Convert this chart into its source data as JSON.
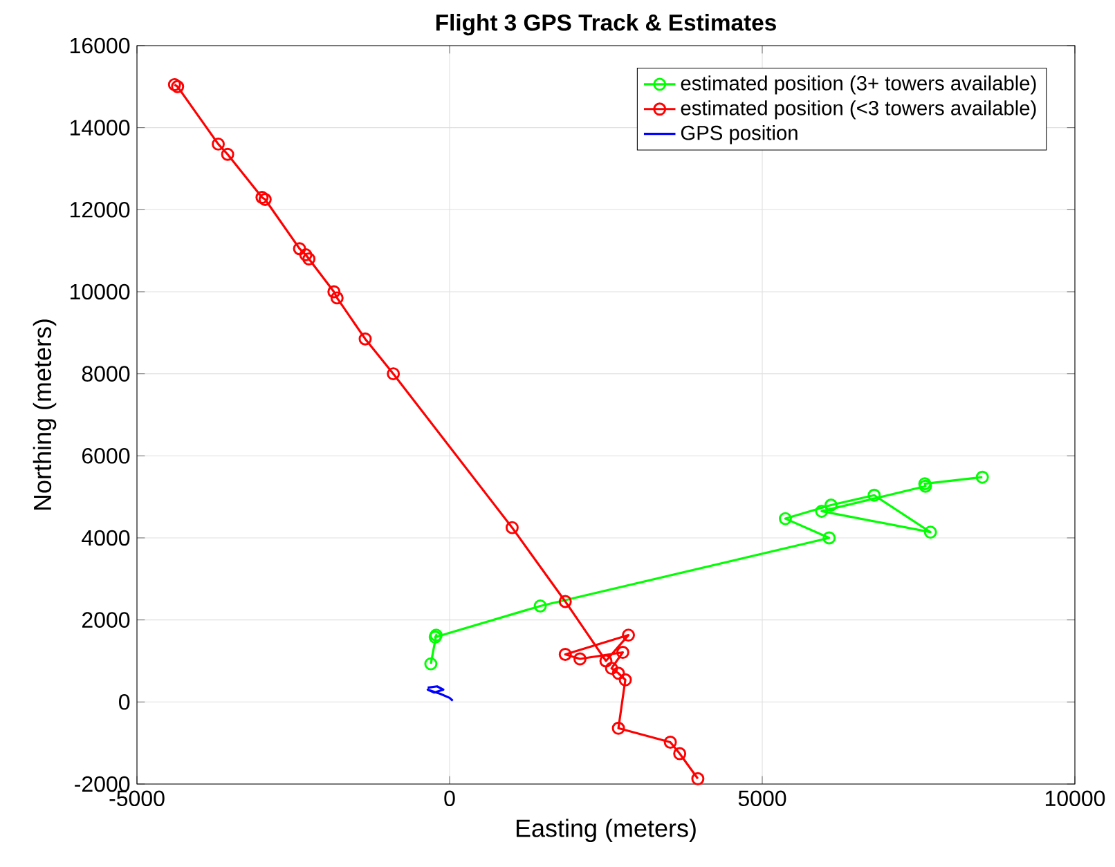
{
  "chart_data": {
    "type": "line",
    "title": "Flight 3 GPS Track & Estimates",
    "xlabel": "Easting (meters)",
    "ylabel": "Northing (meters)",
    "xlim": [
      -5000,
      10000
    ],
    "ylim": [
      -2000,
      16000
    ],
    "xticks": [
      -5000,
      0,
      5000,
      10000
    ],
    "yticks": [
      -2000,
      0,
      2000,
      4000,
      6000,
      8000,
      10000,
      12000,
      14000,
      16000
    ],
    "grid": true,
    "legend": "top right",
    "series": [
      {
        "name": "estimated position (3+ towers available)",
        "color": "#00ff00",
        "marker": "circle",
        "x": [
          -300,
          -215,
          -230,
          1450,
          6070,
          5370,
          6100,
          6790,
          7690,
          5950,
          7610,
          7600,
          8520
        ],
        "values": [
          930,
          1630,
          1580,
          2340,
          4000,
          4470,
          4800,
          5040,
          4140,
          4650,
          5260,
          5320,
          5480
        ]
      },
      {
        "name": "estimated position (<3 towers available)",
        "color": "#ff0000",
        "marker": "circle",
        "x": [
          -4400,
          -4350,
          -3700,
          -3550,
          -3000,
          -2950,
          -2400,
          -2300,
          -2250,
          -1850,
          -1800,
          -1350,
          -900,
          1000,
          1850,
          2500,
          2860,
          1850,
          2085,
          2770,
          2590,
          2700,
          2810,
          2700,
          3530,
          3680,
          3970
        ],
        "values": [
          15050,
          15000,
          13600,
          13350,
          12300,
          12250,
          11050,
          10900,
          10800,
          10000,
          9850,
          8850,
          8000,
          4250,
          2450,
          1000,
          1630,
          1160,
          1050,
          1210,
          820,
          700,
          540,
          -640,
          -980,
          -1260,
          -1870
        ]
      },
      {
        "name": "GPS position",
        "color": "#0000ff",
        "marker": "none",
        "x": [
          -350,
          -200,
          -100,
          -250,
          -350,
          -150,
          0,
          50
        ],
        "values": [
          350,
          380,
          300,
          230,
          300,
          200,
          100,
          30
        ]
      }
    ]
  }
}
